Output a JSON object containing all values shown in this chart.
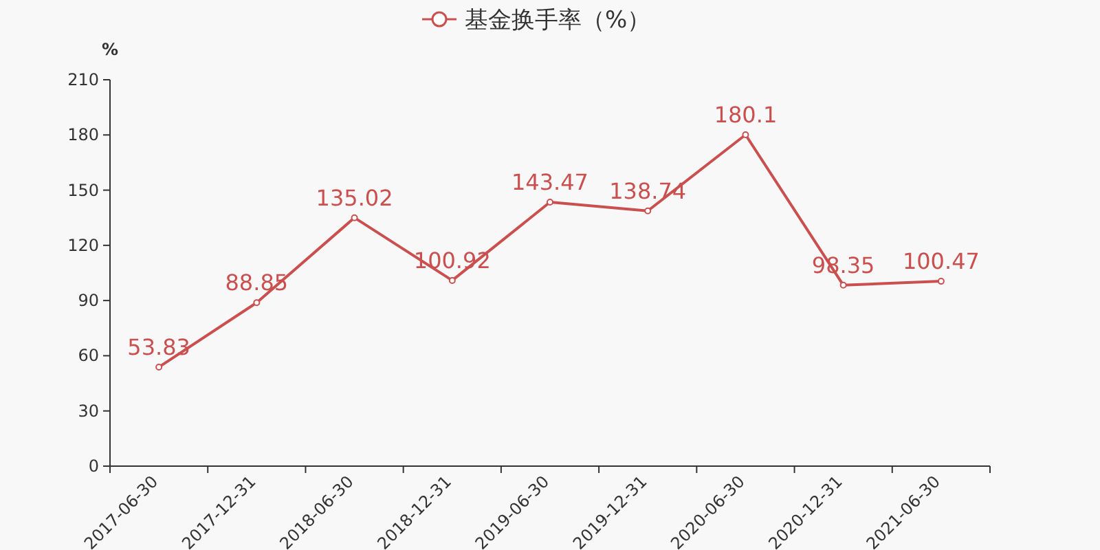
{
  "chart_data": {
    "type": "line",
    "ylabel": "%",
    "categories": [
      "2017-06-30",
      "2017-12-31",
      "2018-06-30",
      "2018-12-31",
      "2019-06-30",
      "2019-12-31",
      "2020-06-30",
      "2020-12-31",
      "2021-06-30"
    ],
    "series": [
      {
        "name": "基金换手率（%）",
        "color": "#c9504f",
        "values": [
          53.83,
          88.85,
          135.02,
          100.92,
          143.47,
          138.74,
          180.1,
          98.35,
          100.47
        ]
      }
    ],
    "ylim": [
      0,
      210
    ],
    "yticks": [
      0,
      30,
      60,
      90,
      120,
      150,
      180,
      210
    ],
    "data_labels": true,
    "marker": "circle",
    "line_style": "solid",
    "legend": "top",
    "grid": false
  }
}
